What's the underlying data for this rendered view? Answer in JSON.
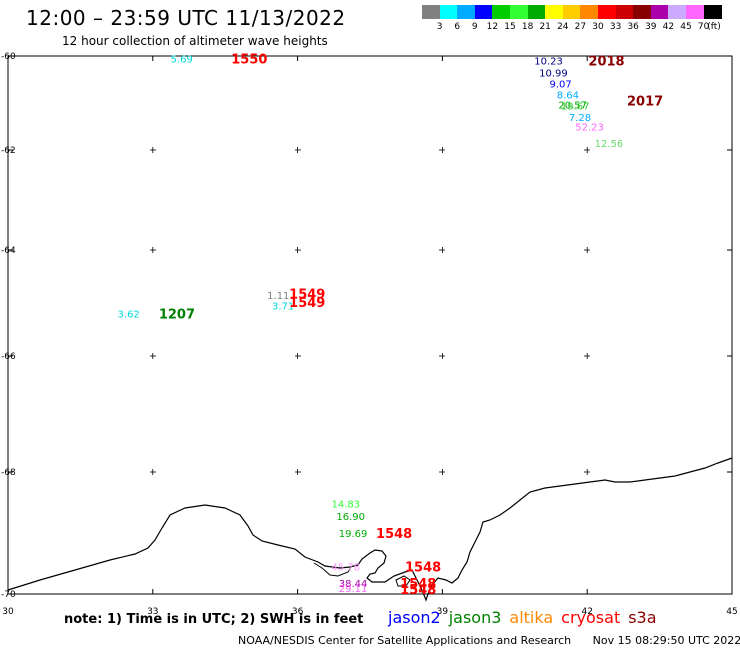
{
  "header": {
    "title": "12:00 – 23:59 UTC 11/13/2022",
    "subtitle": "12 hour collection of altimeter wave heights"
  },
  "color_scale": {
    "unit": "(ft)",
    "colors": [
      "#808080",
      "#00ffff",
      "#00aaff",
      "#0000ff",
      "#00cc00",
      "#33ff33",
      "#00aa00",
      "#ffff00",
      "#ffcc00",
      "#ff8800",
      "#ff0000",
      "#cc0000",
      "#880000",
      "#aa00aa",
      "#ccaaff",
      "#ff66ff",
      "#000000"
    ],
    "labels": [
      "3",
      "6",
      "9",
      "12",
      "15",
      "18",
      "21",
      "24",
      "27",
      "30",
      "33",
      "36",
      "39",
      "42",
      "45",
      "70"
    ]
  },
  "map": {
    "lat_ticks": [
      "-60",
      "-62",
      "-64",
      "-66",
      "-68",
      "-70"
    ],
    "lon_ticks": [
      "30",
      "33",
      "36",
      "39",
      "42",
      "45"
    ],
    "observations": [
      {
        "lon": 33.6,
        "lat": -60.05,
        "value": "5.69",
        "color": "#00d8d8"
      },
      {
        "lon": 41.2,
        "lat": -60.1,
        "value": "10.23",
        "color": "#000080"
      },
      {
        "lon": 41.3,
        "lat": -60.35,
        "value": "10.99",
        "color": "#000080"
      },
      {
        "lon": 41.45,
        "lat": -60.58,
        "value": "9.07",
        "color": "#0000ff"
      },
      {
        "lon": 41.6,
        "lat": -60.82,
        "value": "8.64",
        "color": "#00aaff"
      },
      {
        "lon": 41.7,
        "lat": -61.03,
        "value": "20.57",
        "color": "#00aa00"
      },
      {
        "lon": 41.75,
        "lat": -61.05,
        "value": "19.67",
        "color": "#33cc33"
      },
      {
        "lon": 41.85,
        "lat": -61.3,
        "value": "7.28",
        "color": "#00aaff"
      },
      {
        "lon": 42.05,
        "lat": -61.5,
        "value": "52.23",
        "color": "#ff66ff"
      },
      {
        "lon": 42.45,
        "lat": -61.85,
        "value": "12.56",
        "color": "#66dd66"
      },
      {
        "lon": 35.6,
        "lat": -64.85,
        "value": "1.11",
        "color": "#808080"
      },
      {
        "lon": 35.7,
        "lat": -65.05,
        "value": "3.71",
        "color": "#00d8d8"
      },
      {
        "lon": 32.5,
        "lat": -65.2,
        "value": "3.62",
        "color": "#00d8d8"
      },
      {
        "lon": 37.0,
        "lat": -68.52,
        "value": "14.83",
        "color": "#33ff33"
      },
      {
        "lon": 37.1,
        "lat": -68.72,
        "value": "16.90",
        "color": "#00aa00"
      },
      {
        "lon": 37.15,
        "lat": -69.0,
        "value": "19.69",
        "color": "#00aa00"
      },
      {
        "lon": 37.0,
        "lat": -69.55,
        "value": "45.78",
        "color": "#ff99ff"
      },
      {
        "lon": 37.15,
        "lat": -69.82,
        "value": "38.44",
        "color": "#aa00aa"
      },
      {
        "lon": 37.15,
        "lat": -69.9,
        "value": "29.11",
        "color": "#ff66ff"
      }
    ],
    "time_labels": [
      {
        "lon": 35.0,
        "lat": -60.05,
        "text": "1550",
        "color": "#ff0000"
      },
      {
        "lon": 42.4,
        "lat": -60.1,
        "text": "2018",
        "color": "#880000"
      },
      {
        "lon": 43.2,
        "lat": -60.95,
        "text": "2017",
        "color": "#880000"
      },
      {
        "lon": 36.2,
        "lat": -64.82,
        "text": "1549",
        "color": "#ff0000"
      },
      {
        "lon": 36.2,
        "lat": -64.98,
        "text": "1549",
        "color": "#ff0000"
      },
      {
        "lon": 33.5,
        "lat": -65.2,
        "text": "1207",
        "color": "#008000"
      },
      {
        "lon": 38.0,
        "lat": -69.0,
        "text": "1548",
        "color": "#ff0000"
      },
      {
        "lon": 38.6,
        "lat": -69.55,
        "text": "1548",
        "color": "#ff0000"
      },
      {
        "lon": 38.5,
        "lat": -69.82,
        "text": "1548",
        "color": "#ff0000"
      },
      {
        "lon": 38.5,
        "lat": -69.92,
        "text": "1548",
        "color": "#ff0000"
      }
    ]
  },
  "note": "note:  1) Time is in UTC;  2) SWH is in feet",
  "legend": [
    {
      "name": "jason2",
      "color": "#0000ff"
    },
    {
      "name": "jason3",
      "color": "#008000"
    },
    {
      "name": "altika",
      "color": "#ff8800"
    },
    {
      "name": "cryosat",
      "color": "#ff0000"
    },
    {
      "name": "s3a",
      "color": "#880000"
    }
  ],
  "footer": {
    "credit": "NOAA/NESDIS Center for Satellite Applications and Research",
    "generated": "Nov 15 08:29:50 UTC 2022"
  }
}
